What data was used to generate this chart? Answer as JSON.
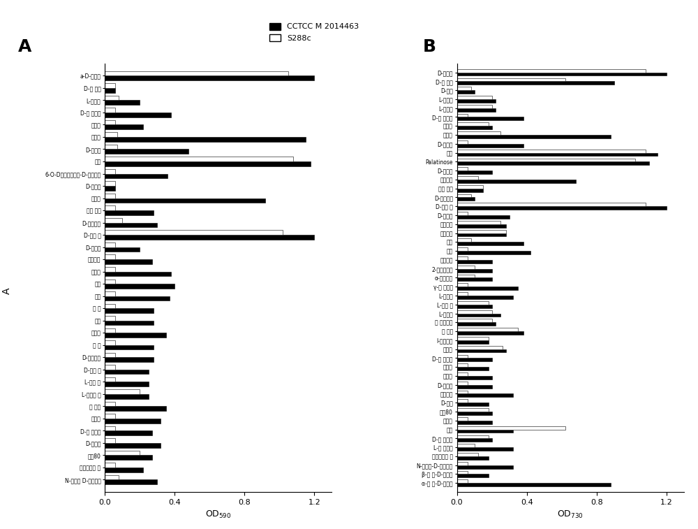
{
  "panel_A": {
    "title": "A",
    "xlabel": "OD$_{590}$",
    "labels": [
      "a-D-葡萄糖",
      "D-半 乳糖",
      "L-山梨糖",
      "D-阿 洛酐糖",
      "水杨苷",
      "松二糖",
      "D-海藻糖",
      "蔽糖",
      "6-O-D吠喂葡萄糖酰-D-吶喂果糖",
      "D-蜜二糖",
      "麦芽糖",
      "龙胆 二糖",
      "D-纤维二糖",
      "D-棉子 糖",
      "D-松三糖",
      "麦芽三唐",
      "水苏糖",
      "菊粉",
      "糊精",
      "甲 酸",
      "乙酸",
      "琥珀酸",
      "丙 酸",
      "D-葡萄糖酸",
      "D-脈氨 酸",
      "L-谷氨 酸",
      "L-天冬氨 酸",
      "丙 三醇",
      "木糖醇",
      "D-阿 拉伯糖",
      "D-山梨醇",
      "吐温80",
      "琥珀酸单甲 酯",
      "N-乙酰基 D-葡萄糖胺"
    ],
    "black_vals": [
      1.2,
      0.06,
      0.2,
      0.38,
      0.22,
      1.15,
      0.48,
      1.18,
      0.36,
      0.06,
      0.92,
      0.28,
      0.3,
      1.2,
      0.2,
      0.27,
      0.38,
      0.4,
      0.37,
      0.28,
      0.28,
      0.35,
      0.28,
      0.28,
      0.25,
      0.25,
      0.25,
      0.35,
      0.32,
      0.27,
      0.32,
      0.27,
      0.22,
      0.3
    ],
    "white_vals": [
      1.05,
      0.06,
      0.08,
      0.06,
      0.06,
      0.07,
      0.07,
      1.08,
      0.06,
      0.06,
      0.06,
      0.06,
      0.1,
      1.02,
      0.06,
      0.06,
      0.06,
      0.06,
      0.06,
      0.06,
      0.06,
      0.06,
      0.06,
      0.06,
      0.06,
      0.06,
      0.2,
      0.06,
      0.06,
      0.06,
      0.06,
      0.2,
      0.06,
      0.08
    ],
    "xlim": [
      0.0,
      1.3
    ],
    "xticks": [
      0.0,
      0.4,
      0.8,
      1.2
    ],
    "xtick_labels": [
      "0.0",
      "0.4",
      "0.8",
      "1.2"
    ]
  },
  "panel_B": {
    "title": "B",
    "xlabel": "OD$_{730}$",
    "labels": [
      "D-葡萄糖",
      "D-半 乳糖",
      "D-木糖",
      "L-山梨糖",
      "L-鼠李糖",
      "D-阿 洛酐糖",
      "水杨苷",
      "松二糖",
      "D-海藻糖",
      "蔽糖",
      "Palatinose",
      "D-蜜二糖",
      "麦芽糖醇",
      "龙胆 二糖",
      "D-纤维二糖",
      "D-棉子 糖",
      "D-松三糖",
      "麦芽三糖",
      "水苏四糖",
      "菊粉",
      "糊精",
      "硫琥珀酸",
      "2-酐葡萄糖酸",
      "α-酐戊二酸",
      "γ-氨 基丁酸",
      "L-葡糖酸",
      "L-谷氨 酸",
      "L-苹果酸",
      "反 丁烯二醇",
      "丙 三醇",
      "I-赤藻糖醇",
      "木糖醇",
      "D-阿 拉伯糖",
      "核糖醇",
      "山梨醇",
      "D-甘蔗糖",
      "麦芽糖醇",
      "D-核糖",
      "吐温80",
      "熊果甘",
      "杏甘",
      "D-树 胶酸糖",
      "L-树 胶酸糖",
      "琥珀酸单甲 酯",
      "N-乙酰基-D-葡萄糖胺",
      "β-甲 基-D-葡萄苷",
      "α-甲 基-D-葡萄苷"
    ],
    "black_vals": [
      1.2,
      0.9,
      0.1,
      0.22,
      0.22,
      0.38,
      0.2,
      0.88,
      0.38,
      1.15,
      1.1,
      0.2,
      0.68,
      0.15,
      0.1,
      1.2,
      0.3,
      0.28,
      0.28,
      0.38,
      0.42,
      0.2,
      0.2,
      0.2,
      0.35,
      0.32,
      0.2,
      0.25,
      0.22,
      0.38,
      0.18,
      0.28,
      0.2,
      0.18,
      0.2,
      0.2,
      0.32,
      0.18,
      0.2,
      0.2,
      0.32,
      0.2,
      0.32,
      0.18,
      0.32,
      0.18,
      0.88
    ],
    "white_vals": [
      1.08,
      0.62,
      0.08,
      0.2,
      0.2,
      0.06,
      0.18,
      0.25,
      0.06,
      1.08,
      1.02,
      0.06,
      0.12,
      0.15,
      0.08,
      1.08,
      0.06,
      0.25,
      0.28,
      0.08,
      0.06,
      0.06,
      0.1,
      0.1,
      0.06,
      0.06,
      0.18,
      0.2,
      0.2,
      0.35,
      0.18,
      0.26,
      0.06,
      0.06,
      0.06,
      0.06,
      0.06,
      0.06,
      0.18,
      0.06,
      0.62,
      0.18,
      0.1,
      0.12,
      0.06,
      0.06,
      0.06
    ],
    "xlim": [
      0.0,
      1.3
    ],
    "xticks": [
      0.0,
      0.4,
      0.8,
      1.2
    ],
    "xtick_labels": [
      "0.0",
      "0.4",
      "0.8",
      "1.2"
    ]
  },
  "legend_black": "CCTCC M 2014463",
  "legend_white": "S288c",
  "bar_height": 0.38,
  "black_color": "#000000",
  "white_color": "#ffffff",
  "edge_color": "#000000",
  "background_color": "#ffffff",
  "fig_width": 10.0,
  "fig_height": 7.57
}
